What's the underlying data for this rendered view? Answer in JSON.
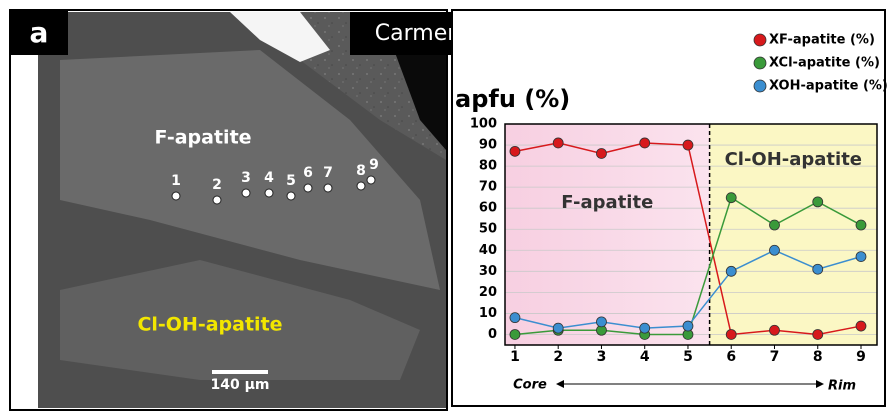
{
  "panel_a": {
    "label": "a",
    "sample": "Carmen",
    "region_labels": [
      "F-apatite",
      "Cl-OH-apatite"
    ],
    "points": [
      "1",
      "2",
      "3",
      "4",
      "5",
      "6",
      "7",
      "8",
      "9"
    ],
    "scale_bar": "140 µm"
  },
  "chart_data": {
    "type": "line",
    "y_label": "apfu (%)",
    "x": [
      1,
      2,
      3,
      4,
      5,
      6,
      7,
      8,
      9
    ],
    "xlim": [
      0.77,
      9.37
    ],
    "xticks": [
      1,
      2,
      3,
      4,
      5,
      6,
      7,
      8,
      9
    ],
    "ylim": [
      -5,
      100
    ],
    "yticks": [
      0,
      10,
      20,
      30,
      40,
      50,
      60,
      70,
      80,
      90,
      100
    ],
    "grid": true,
    "divider": 5.5,
    "zones": [
      "F-apatite",
      "Cl-OH-apatite"
    ],
    "x_start": "Core",
    "x_end": "Rim",
    "series": [
      {
        "name": "XF-apatite (%)",
        "color": "#d7191c",
        "values": [
          87,
          91,
          86,
          91,
          90,
          0,
          2,
          0,
          4
        ]
      },
      {
        "name": "XCl-apatite (%)",
        "color": "#3a9a3a",
        "values": [
          0,
          2,
          2,
          0,
          0,
          65,
          52,
          63,
          52
        ]
      },
      {
        "name": "XOH-apatite (%)",
        "color": "#3b8ed0",
        "values": [
          8,
          3,
          6,
          3,
          4,
          30,
          40,
          31,
          37
        ]
      }
    ]
  }
}
